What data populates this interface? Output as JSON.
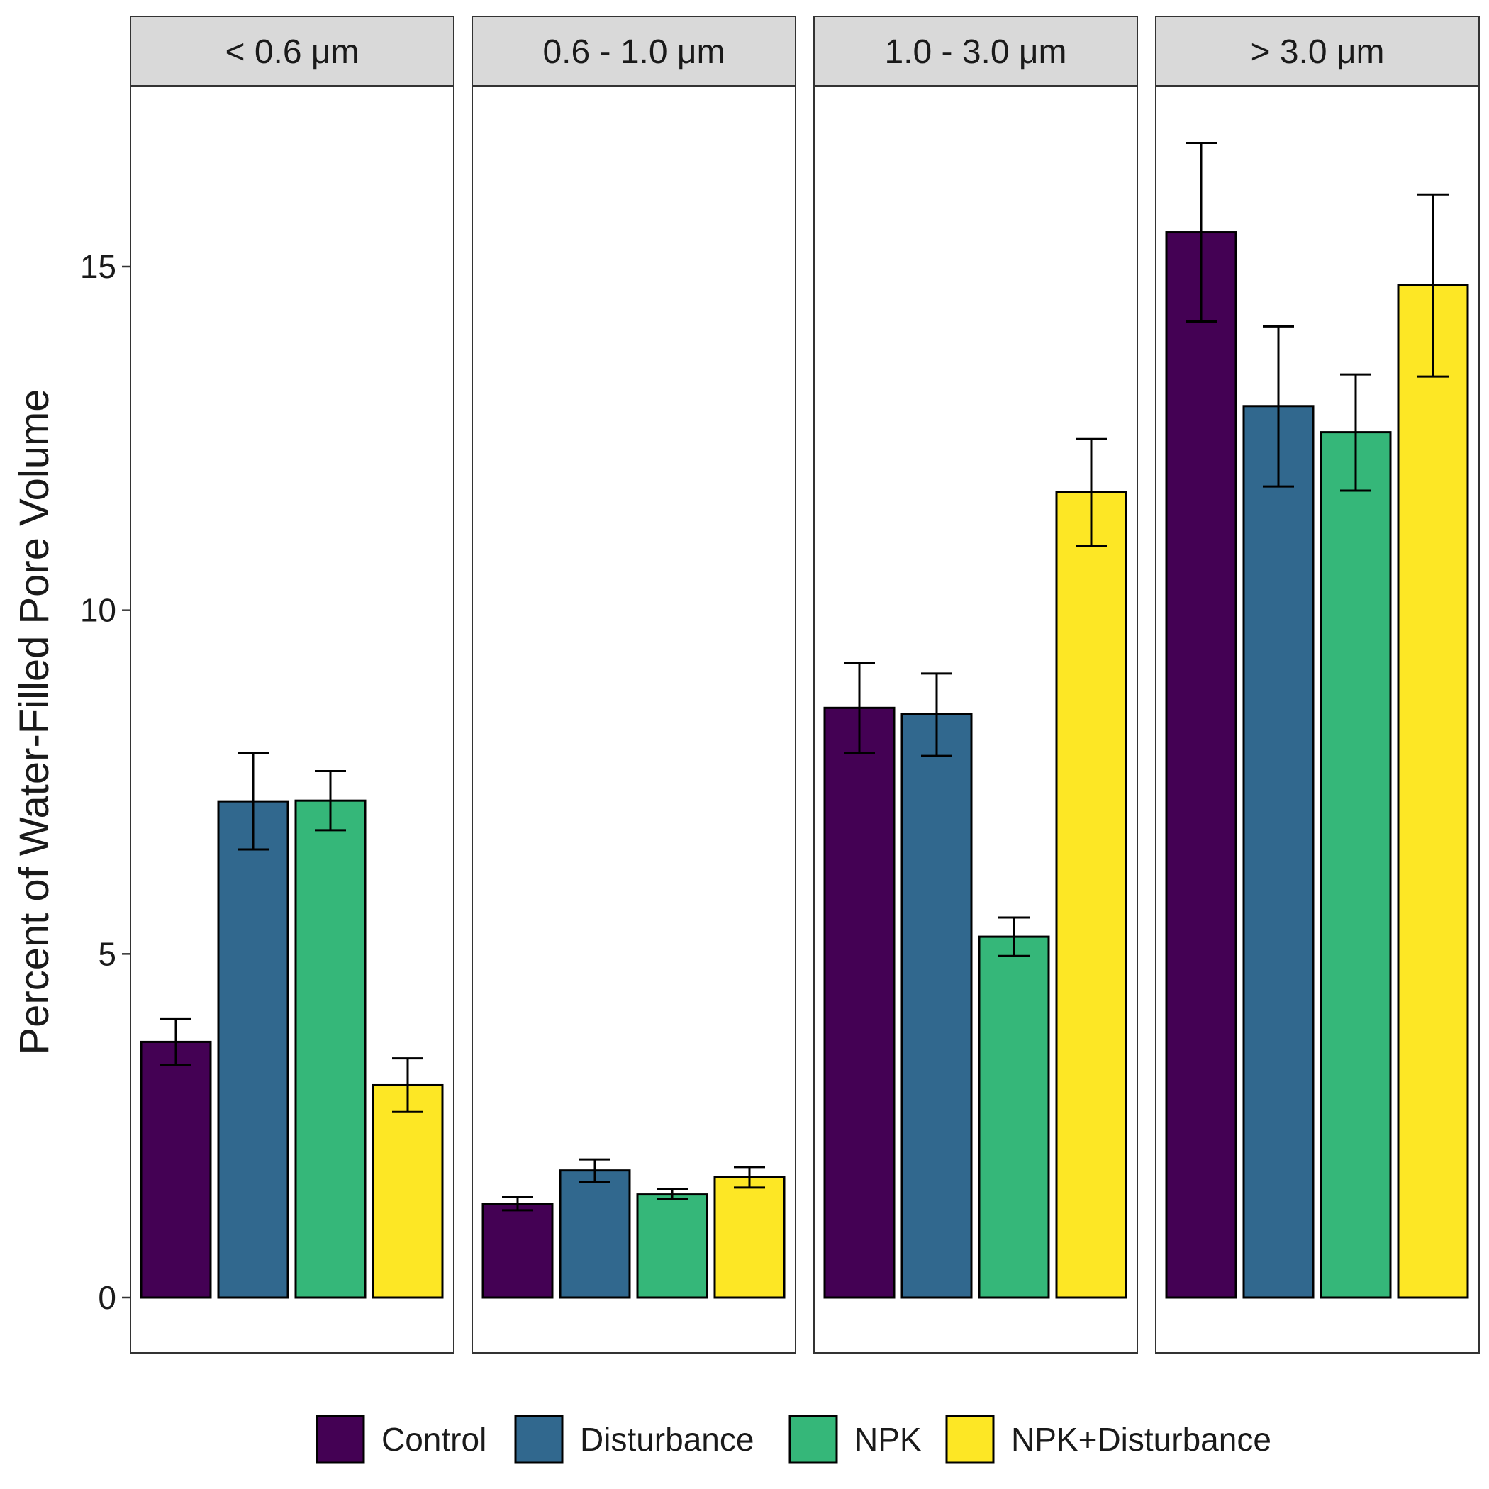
{
  "chart_data": {
    "type": "bar",
    "ylabel": "Percent of Water-Filled Pore Volume",
    "xlabel": "",
    "ylim": [
      -0.8,
      17.5
    ],
    "yticks": [
      0,
      5,
      10,
      15
    ],
    "grid": false,
    "legend_position": "bottom",
    "facets": [
      "< 0.6 μm",
      "0.6 - 1.0 μm",
      "1.0 - 3.0 μm",
      "> 3.0 μm"
    ],
    "series": [
      {
        "name": "Control",
        "color": "#440154",
        "values": [
          3.72,
          1.36,
          8.58,
          15.5
        ],
        "error_low": [
          3.38,
          1.27,
          7.92,
          14.2
        ],
        "error_high": [
          4.05,
          1.46,
          9.23,
          16.8
        ]
      },
      {
        "name": "Disturbance",
        "color": "#31688E",
        "values": [
          7.22,
          1.85,
          8.49,
          12.97
        ],
        "error_low": [
          6.52,
          1.68,
          7.88,
          11.8
        ],
        "error_high": [
          7.92,
          2.01,
          9.08,
          14.13
        ]
      },
      {
        "name": "NPK",
        "color": "#35B779",
        "values": [
          7.23,
          1.5,
          5.25,
          12.59
        ],
        "error_low": [
          6.8,
          1.43,
          4.97,
          11.74
        ],
        "error_high": [
          7.66,
          1.58,
          5.53,
          13.43
        ]
      },
      {
        "name": "NPK+Disturbance",
        "color": "#FDE725",
        "values": [
          3.09,
          1.75,
          11.72,
          14.73
        ],
        "error_low": [
          2.7,
          1.6,
          10.94,
          13.4
        ],
        "error_high": [
          3.48,
          1.9,
          12.49,
          16.05
        ]
      }
    ]
  }
}
